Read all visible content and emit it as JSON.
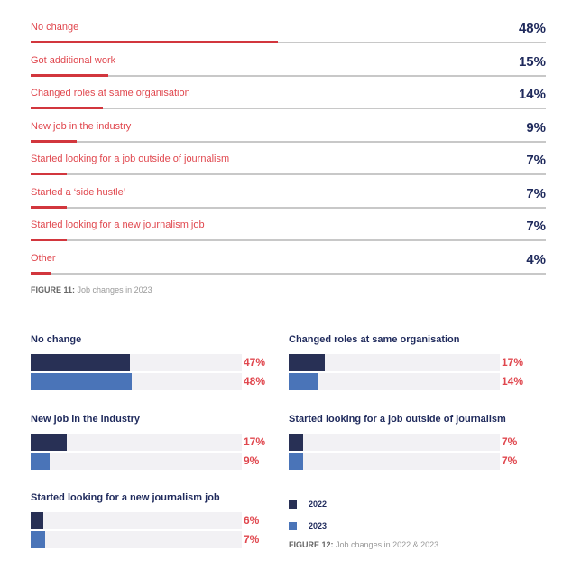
{
  "chart_data": [
    {
      "type": "bar",
      "orientation": "horizontal",
      "categories": [
        "No change",
        "Got additional work",
        "Changed roles at same organisation",
        "New job in the industry",
        "Started looking for a job outside of journalism",
        "Started a ‘side hustle’",
        "Started looking for a new journalism job",
        "Other"
      ],
      "values": [
        48,
        15,
        14,
        9,
        7,
        7,
        7,
        4
      ],
      "value_labels": [
        "48%",
        "15%",
        "14%",
        "9%",
        "7%",
        "7%",
        "7%",
        "4%"
      ],
      "xlim": [
        0,
        100
      ],
      "caption_label": "FIGURE 11:",
      "caption_text": "Job changes in 2023",
      "colors": {
        "fill": "#d2363d",
        "track": "#c8c8c8",
        "label": "#e0474e",
        "value": "#1f2a5c"
      }
    },
    {
      "type": "bar",
      "orientation": "horizontal",
      "groups": [
        {
          "title": "No change",
          "values": [
            47,
            48
          ],
          "labels": [
            "47%",
            "48%"
          ]
        },
        {
          "title": "Changed roles at same organisation",
          "values": [
            17,
            14
          ],
          "labels": [
            "17%",
            "14%"
          ]
        },
        {
          "title": "New job in the industry",
          "values": [
            17,
            9
          ],
          "labels": [
            "17%",
            "9%"
          ]
        },
        {
          "title": "Started looking for a job outside of journalism",
          "values": [
            7,
            7
          ],
          "labels": [
            "7%",
            "7%"
          ]
        },
        {
          "title": "Started looking for a new journalism job",
          "values": [
            6,
            7
          ],
          "labels": [
            "6%",
            "7%"
          ]
        }
      ],
      "series": [
        {
          "name": "2022",
          "color": "#283055"
        },
        {
          "name": "2023",
          "color": "#4a74b8"
        }
      ],
      "xlim": [
        0,
        100
      ],
      "legend_placement": "bottom-right",
      "caption_label": "FIGURE 12:",
      "caption_text": "Job changes in 2022 & 2023"
    }
  ]
}
